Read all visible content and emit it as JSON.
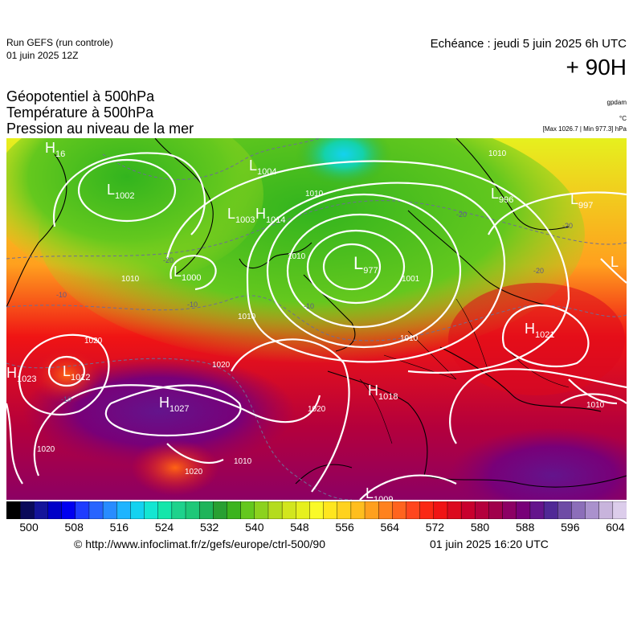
{
  "header": {
    "run_name": "Run GEFS (run controle)",
    "run_date": "01 juin 2025 12Z",
    "valid_time": "Echéance : jeudi 5 juin 2025 6h UTC",
    "lead_time": "+ 90H"
  },
  "layers": [
    {
      "label": "Géopotentiel à 500hPa",
      "unit": "gpdam"
    },
    {
      "label": "Température à 500hPa",
      "unit": "°C"
    },
    {
      "label": "Pression au niveau de la mer",
      "unit": "[Max 1026.7 | Min 977.3] hPa"
    }
  ],
  "map": {
    "pressure_centers": [
      {
        "type": "H",
        "value": "16"
      },
      {
        "type": "L",
        "value": "1002"
      },
      {
        "type": "L",
        "value": "1004"
      },
      {
        "type": "L",
        "value": "1003"
      },
      {
        "type": "H",
        "value": "1014"
      },
      {
        "type": "L",
        "value": "977"
      },
      {
        "type": "L",
        "value": "996"
      },
      {
        "type": "L",
        "value": "997"
      },
      {
        "type": "L",
        "value": "1000"
      },
      {
        "type": "H",
        "value": "1021"
      },
      {
        "type": "H",
        "value": "1023"
      },
      {
        "type": "L",
        "value": "1012"
      },
      {
        "type": "H",
        "value": "1018"
      },
      {
        "type": "H",
        "value": "1027"
      },
      {
        "type": "L",
        "value": "1009"
      },
      {
        "type": "L",
        "value": ""
      }
    ],
    "isobar_labels": [
      "1010",
      "1010",
      "1010",
      "1010",
      "1001",
      "1010",
      "1010",
      "1020",
      "1020",
      "1020",
      "1020",
      "1020",
      "1010",
      "1010"
    ],
    "temperature_labels": [
      "-20",
      "-20",
      "-20",
      "-10",
      "-10",
      "-10",
      "-10",
      "-20"
    ]
  },
  "colorbar": {
    "ticks": [
      "500",
      "508",
      "516",
      "524",
      "532",
      "540",
      "548",
      "556",
      "564",
      "572",
      "580",
      "588",
      "596",
      "604"
    ],
    "min": 496,
    "max": 606,
    "step": 2,
    "colors": [
      "#000000",
      "#0a0a5a",
      "#14149a",
      "#0000c8",
      "#0000f0",
      "#1e3cff",
      "#2864ff",
      "#288cff",
      "#1eb4ff",
      "#14d2f0",
      "#14e6d2",
      "#14e6aa",
      "#1ed28c",
      "#1ec878",
      "#1eb45a",
      "#28a032",
      "#3cb41e",
      "#64c81e",
      "#8cd21e",
      "#b4dc1e",
      "#d2e61e",
      "#e6f01e",
      "#fafa28",
      "#ffe61e",
      "#ffd21e",
      "#ffbe1e",
      "#ffa01e",
      "#ff821e",
      "#ff641e",
      "#ff461e",
      "#fa2814",
      "#f01414",
      "#dc0a1e",
      "#c8002d",
      "#b4003c",
      "#a0004b",
      "#8c0064",
      "#780078",
      "#64148c",
      "#502896",
      "#6e4ba5",
      "#8c6eb9",
      "#aa91cd",
      "#c8b4dc",
      "#dccdeb"
    ]
  },
  "footer": {
    "copyright": "© http://www.infoclimat.fr/z/gefs/europe/ctrl-500/90",
    "generated": "01 juin 2025 16:20 UTC"
  }
}
